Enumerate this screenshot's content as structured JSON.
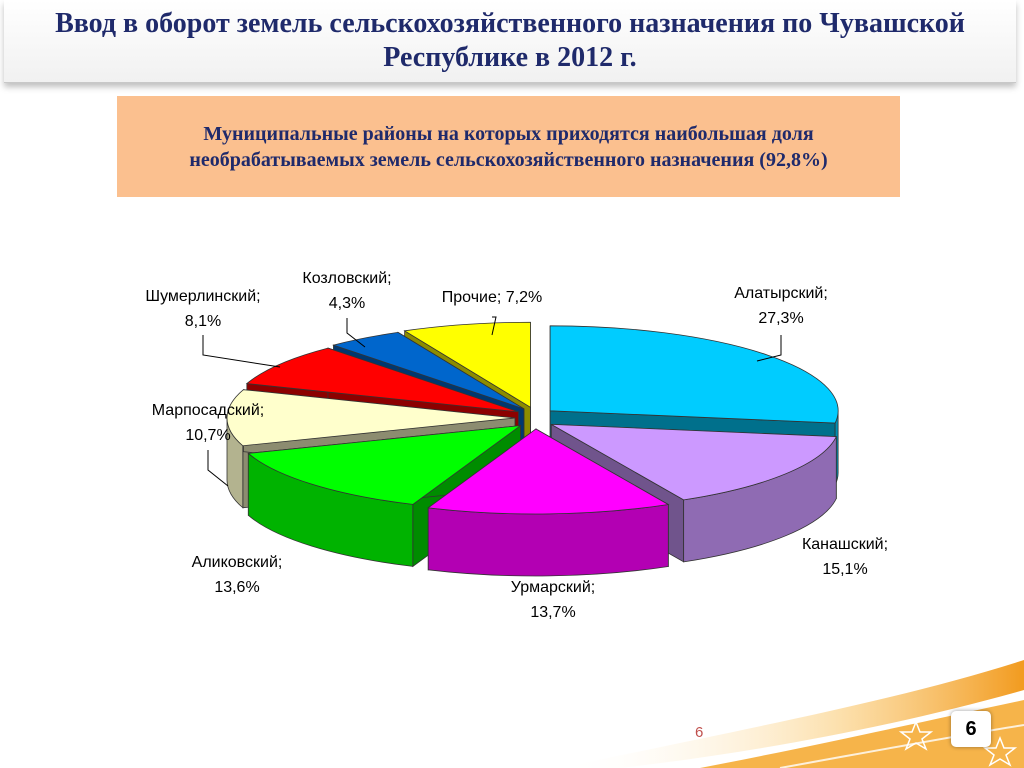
{
  "slide": {
    "title": "Ввод в оборот земель сельскохозяйственного назначения  по Чувашской Республике в 2012 г.",
    "subtitle": "Муниципальные районы на которых приходятся наибольшая доля необрабатываемых земель сельскохозяйственного назначения (92,8%)",
    "page_number": "6",
    "badge_number": "6"
  },
  "chart_data": {
    "type": "pie",
    "title": "",
    "label_format": "{name}; {value}%",
    "slices": [
      {
        "name": "Алатырский",
        "value": 27.3,
        "value_label": "27,3%",
        "color": "#00ccff"
      },
      {
        "name": "Канашский",
        "value": 15.1,
        "value_label": "15,1%",
        "color": "#cc99ff"
      },
      {
        "name": "Урмарский",
        "value": 13.7,
        "value_label": "13,7%",
        "color": "#ff00ff"
      },
      {
        "name": "Аликовский",
        "value": 13.6,
        "value_label": "13,6%",
        "color": "#00ff00"
      },
      {
        "name": "Марпосадский",
        "value": 10.7,
        "value_label": "10,7%",
        "color": "#ffffcc"
      },
      {
        "name": "Шумерлинский",
        "value": 8.1,
        "value_label": "8,1%",
        "color": "#ff0000"
      },
      {
        "name": "Козловский",
        "value": 4.3,
        "value_label": "4,3%",
        "color": "#0066cc"
      },
      {
        "name": "Прочие",
        "value": 7.2,
        "value_label": "7,2%",
        "color": "#ffff00"
      }
    ]
  }
}
